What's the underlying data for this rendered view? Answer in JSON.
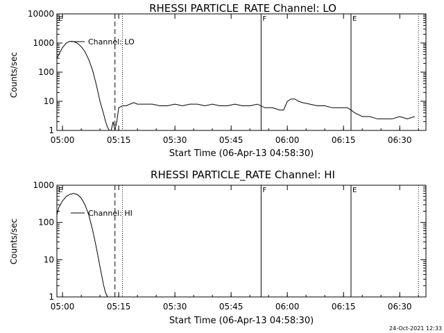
{
  "chart_data": [
    {
      "type": "line",
      "title": "RHESSI PARTICLE_RATE Channel: LO",
      "xlabel": "Start Time (06-Apr-13 04:58:30)",
      "ylabel": "Counts/sec",
      "yscale": "log",
      "ylim": [
        1,
        10000
      ],
      "xlim": [
        "05:00",
        "06:37"
      ],
      "x_ticks": [
        "05:00",
        "05:15",
        "05:30",
        "05:45",
        "06:00",
        "06:15",
        "06:30"
      ],
      "y_ticks": [
        "1",
        "10",
        "100",
        "1000",
        "10000"
      ],
      "legend": "top-left",
      "series": [
        {
          "name": "Channel: LO",
          "x": [
            "04:58:30",
            "05:00",
            "05:01",
            "05:02",
            "05:03",
            "05:04",
            "05:05",
            "05:06",
            "05:07",
            "05:08",
            "05:09",
            "05:10",
            "05:11",
            "05:11:30",
            "05:12",
            "05:12:30",
            "05:13",
            "05:13:30",
            "05:14",
            "05:14:30",
            "05:15",
            "05:16",
            "05:17",
            "05:18",
            "05:19",
            "05:20",
            "05:22",
            "05:24",
            "05:26",
            "05:28",
            "05:30",
            "05:32",
            "05:34",
            "05:36",
            "05:38",
            "05:40",
            "05:42",
            "05:44",
            "05:46",
            "05:48",
            "05:50",
            "05:52",
            "05:54",
            "05:56",
            "05:58",
            "05:59",
            "06:00",
            "06:01",
            "06:02",
            "06:03",
            "06:04",
            "06:06",
            "06:08",
            "06:10",
            "06:12",
            "06:14",
            "06:15",
            "06:16",
            "06:17",
            "06:18",
            "06:20",
            "06:22",
            "06:24",
            "06:26",
            "06:28",
            "06:30",
            "06:32",
            "06:34"
          ],
          "values": [
            300,
            700,
            1000,
            1150,
            1120,
            980,
            750,
            500,
            270,
            120,
            38,
            10,
            3.6,
            2,
            1.3,
            1,
            1,
            2,
            1,
            2,
            6,
            7,
            7,
            8,
            9,
            8,
            8,
            8,
            7,
            7,
            8,
            7,
            8,
            8,
            7,
            8,
            7,
            7,
            8,
            7,
            7,
            8,
            6,
            6,
            5,
            5,
            10,
            12,
            12,
            10,
            9,
            8,
            7,
            7,
            6,
            6,
            6,
            6,
            5,
            4,
            3,
            3,
            2.5,
            2.5,
            2.5,
            3,
            2.5,
            3
          ]
        }
      ],
      "markers": [
        {
          "label": "E",
          "time": "04:58:30",
          "style": "solid"
        },
        {
          "label": "",
          "time": "05:14",
          "style": "dashed"
        },
        {
          "label": "",
          "time": "05:16",
          "style": "dotted"
        },
        {
          "label": "F",
          "time": "05:53",
          "style": "solid"
        },
        {
          "label": "E",
          "time": "06:17",
          "style": "solid"
        },
        {
          "label": "",
          "time": "06:35",
          "style": "dotted"
        }
      ]
    },
    {
      "type": "line",
      "title": "RHESSI PARTICLE_RATE Channel: HI",
      "xlabel": "Start Time (06-Apr-13 04:58:30)",
      "ylabel": "Counts/sec",
      "yscale": "log",
      "ylim": [
        1,
        1000
      ],
      "xlim": [
        "05:00",
        "06:37"
      ],
      "x_ticks": [
        "05:00",
        "05:15",
        "05:30",
        "05:45",
        "06:00",
        "06:15",
        "06:30"
      ],
      "y_ticks": [
        "1",
        "10",
        "100",
        "1000"
      ],
      "legend": "top-left",
      "series": [
        {
          "name": "Channel: HI",
          "x": [
            "04:58:30",
            "04:59",
            "05:00",
            "05:01",
            "05:02",
            "05:03",
            "05:04",
            "05:05",
            "05:06",
            "05:07",
            "05:08",
            "05:09",
            "05:10",
            "05:11",
            "05:11:30",
            "05:12"
          ],
          "values": [
            160,
            250,
            380,
            500,
            570,
            600,
            560,
            450,
            300,
            160,
            65,
            22,
            6.5,
            2,
            1.3,
            1
          ]
        }
      ],
      "markers": [
        {
          "label": "E",
          "time": "04:58:30",
          "style": "solid"
        },
        {
          "label": "",
          "time": "05:14",
          "style": "dashed"
        },
        {
          "label": "",
          "time": "05:16",
          "style": "dotted"
        },
        {
          "label": "F",
          "time": "05:53",
          "style": "solid"
        },
        {
          "label": "E",
          "time": "06:17",
          "style": "solid"
        },
        {
          "label": "",
          "time": "06:35",
          "style": "dotted"
        }
      ]
    }
  ],
  "timestamp": "24-Oct-2021 12:33"
}
